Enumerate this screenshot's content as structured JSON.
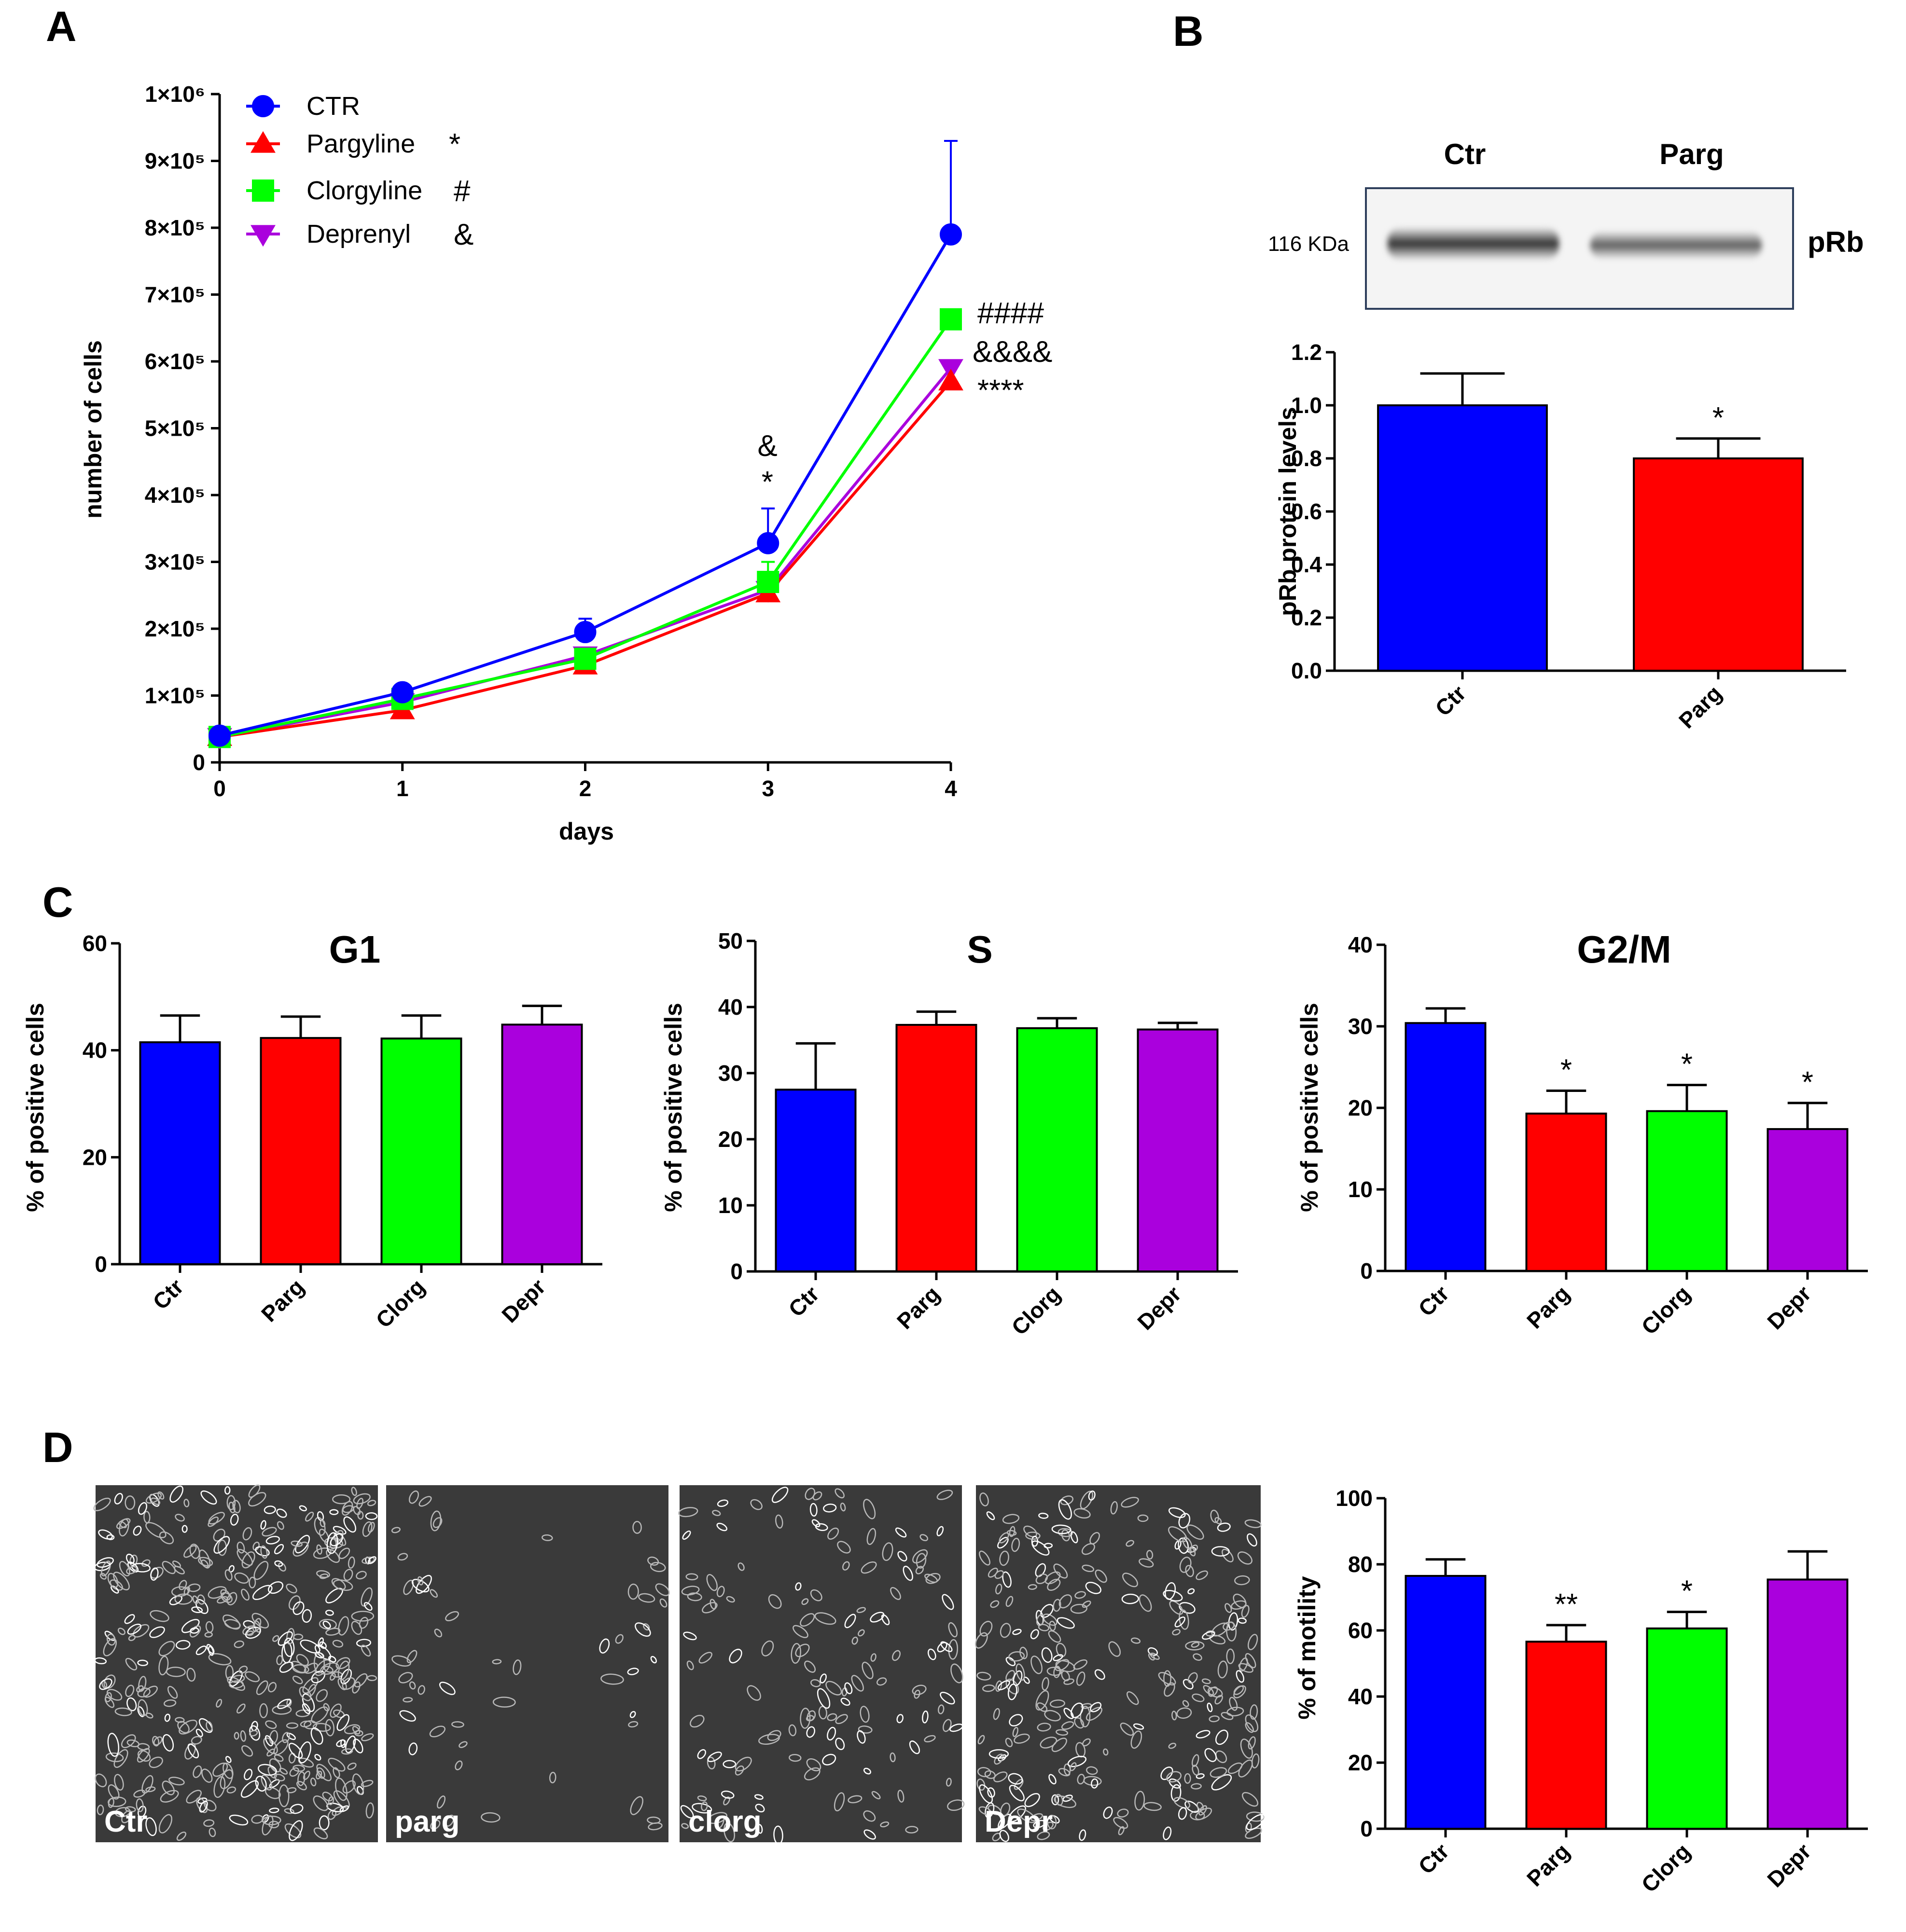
{
  "panel_labels": {
    "a": "A",
    "b": "B",
    "c": "C",
    "d": "D"
  },
  "colors": {
    "Ctr": "#0000ff",
    "Parg": "#ff0000",
    "Clorg": "#00ff00",
    "Depr": "#aa00dd"
  },
  "chart_data": [
    {
      "id": "A",
      "type": "line",
      "xlabel": "days",
      "ylabel": "number of cells",
      "x": [
        0,
        1,
        2,
        3,
        4
      ],
      "xlim": [
        0,
        4
      ],
      "ylim": [
        0,
        1000000
      ],
      "ytick_labels": [
        "0",
        "1×10⁵",
        "2×10⁵",
        "3×10⁵",
        "4×10⁵",
        "5×10⁵",
        "6×10⁵",
        "7×10⁵",
        "8×10⁵",
        "9×10⁵",
        "1×10⁶"
      ],
      "legend_position": "top-left",
      "series": [
        {
          "name": "CTR",
          "marker": "circle",
          "color": "#0000ff",
          "legend_sig": "",
          "values": [
            40000,
            105000,
            195000,
            328000,
            790000
          ],
          "error": [
            0,
            5000,
            20000,
            52000,
            140000
          ]
        },
        {
          "name": "Pargyline",
          "marker": "triangle-up",
          "color": "#ff0000",
          "legend_sig": "*",
          "values": [
            38000,
            78000,
            145000,
            253000,
            570000
          ],
          "error": [
            0,
            0,
            0,
            0,
            0
          ]
        },
        {
          "name": "Clorgyline",
          "marker": "square",
          "color": "#00ff00",
          "legend_sig": "#",
          "values": [
            38000,
            95000,
            155000,
            270000,
            663000
          ],
          "error": [
            0,
            0,
            0,
            30000,
            0
          ]
        },
        {
          "name": "Deprenyl",
          "marker": "triangle-down",
          "color": "#aa00dd",
          "legend_sig": "&",
          "values": [
            38000,
            90000,
            160000,
            258000,
            590000
          ],
          "error": [
            0,
            0,
            0,
            0,
            0
          ]
        }
      ],
      "annotations": [
        {
          "x": 3,
          "text": "*"
        },
        {
          "x": 3,
          "text": "&"
        },
        {
          "x": 4,
          "text": "####"
        },
        {
          "x": 4,
          "text": "&&&&"
        },
        {
          "x": 4,
          "text": "****"
        }
      ]
    },
    {
      "id": "B",
      "type": "bar",
      "ylabel": "pRb protein levels",
      "categories": [
        "Ctr",
        "Parg"
      ],
      "values": [
        1.0,
        0.8
      ],
      "error": [
        0.12,
        0.075
      ],
      "ylim": [
        0,
        1.2
      ],
      "yticks": [
        "0.0",
        "0.2",
        "0.4",
        "0.6",
        "0.8",
        "1.0",
        "1.2"
      ],
      "significance": [
        "",
        "*"
      ]
    },
    {
      "id": "C-G1",
      "type": "bar",
      "title": "G1",
      "ylabel": "% of positive cells",
      "categories": [
        "Ctr",
        "Parg",
        "Clorg",
        "Depr"
      ],
      "values": [
        41.5,
        42.3,
        42.2,
        44.8
      ],
      "error": [
        5.0,
        4.0,
        4.3,
        3.5
      ],
      "ylim": [
        0,
        60
      ],
      "yticks": [
        "0",
        "20",
        "40",
        "60"
      ],
      "significance": [
        "",
        "",
        "",
        ""
      ]
    },
    {
      "id": "C-S",
      "type": "bar",
      "title": "S",
      "ylabel": "% of positive cells",
      "categories": [
        "Ctr",
        "Parg",
        "Clorg",
        "Depr"
      ],
      "values": [
        27.5,
        37.3,
        36.8,
        36.6
      ],
      "error": [
        7.0,
        2.0,
        1.5,
        1.0
      ],
      "ylim": [
        0,
        50
      ],
      "yticks": [
        "0",
        "10",
        "20",
        "30",
        "40",
        "50"
      ],
      "significance": [
        "",
        "",
        "",
        ""
      ]
    },
    {
      "id": "C-G2M",
      "type": "bar",
      "title": "G2/M",
      "ylabel": "% of positive cells",
      "categories": [
        "Ctr",
        "Parg",
        "Clorg",
        "Depr"
      ],
      "values": [
        30.4,
        19.3,
        19.6,
        17.4
      ],
      "error": [
        1.8,
        2.8,
        3.2,
        3.2
      ],
      "ylim": [
        0,
        40
      ],
      "yticks": [
        "0",
        "10",
        "20",
        "30",
        "40"
      ],
      "significance": [
        "",
        "*",
        "*",
        "*"
      ]
    },
    {
      "id": "D",
      "type": "bar",
      "ylabel": "% of motility",
      "categories": [
        "Ctr",
        "Parg",
        "Clorg",
        "Depr"
      ],
      "values": [
        76.5,
        56.6,
        60.6,
        75.4
      ],
      "error": [
        5.0,
        5.0,
        5.0,
        8.5
      ],
      "ylim": [
        0,
        100
      ],
      "yticks": [
        "0",
        "20",
        "40",
        "60",
        "80",
        "100"
      ],
      "significance": [
        "",
        "**",
        "*",
        ""
      ]
    }
  ],
  "blot": {
    "lanes": [
      "Ctr",
      "Parg"
    ],
    "mw": "116 KDa",
    "protein": "pRb"
  },
  "micrographs": [
    {
      "label": "Ctr",
      "style": "dense"
    },
    {
      "label": "parg",
      "style": "wound"
    },
    {
      "label": "clorg",
      "style": "sparse"
    },
    {
      "label": "Depr",
      "style": "medium"
    }
  ]
}
